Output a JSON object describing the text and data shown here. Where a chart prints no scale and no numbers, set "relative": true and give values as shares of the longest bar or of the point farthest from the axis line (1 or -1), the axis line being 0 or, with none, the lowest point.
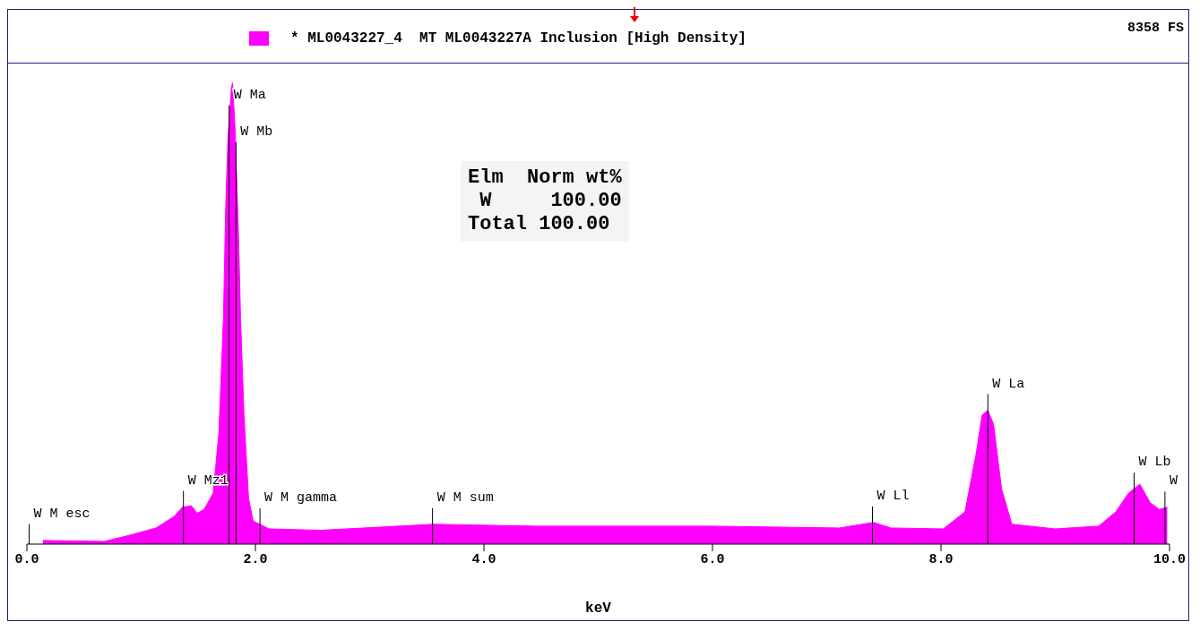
{
  "chart_data": {
    "type": "area",
    "relative": true,
    "legend": "top",
    "marker": "none",
    "grid": false,
    "xlabel": "keV",
    "xlim": [
      0,
      10
    ],
    "xticks": [
      {
        "value": 0,
        "label": "0.0"
      },
      {
        "value": 2,
        "label": "2.0"
      },
      {
        "value": 4,
        "label": "4.0"
      },
      {
        "value": 6,
        "label": "6.0"
      },
      {
        "value": 8,
        "label": "8.0"
      },
      {
        "value": 10,
        "label": "10.0"
      }
    ],
    "annotations": [
      "8358 FS",
      "Elm  Norm wt%",
      " W     100.00",
      "Total 100.00"
    ],
    "ref_lines": [
      {
        "axis": "x",
        "value": 0.02,
        "label": "W M esc"
      },
      {
        "axis": "x",
        "value": 1.37,
        "label": "W Mz1"
      },
      {
        "axis": "x",
        "value": 1.77,
        "label": "W Ma"
      },
      {
        "axis": "x",
        "value": 1.83,
        "label": "W Mb"
      },
      {
        "axis": "x",
        "value": 2.04,
        "label": "W M gamma"
      },
      {
        "axis": "x",
        "value": 3.55,
        "label": "W M sum"
      },
      {
        "axis": "x",
        "value": 7.4,
        "label": "W Ll"
      },
      {
        "axis": "x",
        "value": 8.41,
        "label": "W La"
      },
      {
        "axis": "x",
        "value": 9.69,
        "label": "W Lb"
      },
      {
        "axis": "x",
        "value": 9.96,
        "label": "W"
      }
    ],
    "series": [
      {
        "name": "* ML0043227_4  MT ML0043227A Inclusion [High Density]",
        "color": "#ff00ff",
        "x": [
          0.14,
          0.68,
          0.91,
          1.13,
          1.29,
          1.36,
          1.44,
          1.49,
          1.55,
          1.63,
          1.68,
          1.72,
          1.74,
          1.76,
          1.79,
          1.8,
          1.82,
          1.85,
          1.87,
          1.9,
          1.94,
          1.98,
          2.12,
          2.57,
          3.56,
          4.46,
          5.98,
          7.11,
          7.41,
          7.56,
          8.02,
          8.21,
          8.31,
          8.36,
          8.41,
          8.46,
          8.53,
          8.62,
          9.0,
          9.38,
          9.53,
          9.64,
          9.74,
          9.83,
          9.91,
          9.98
        ],
        "values": [
          0.008,
          0.006,
          0.02,
          0.035,
          0.06,
          0.08,
          0.083,
          0.067,
          0.075,
          0.11,
          0.24,
          0.49,
          0.73,
          0.88,
          0.99,
          1.0,
          0.91,
          0.69,
          0.49,
          0.28,
          0.1,
          0.05,
          0.033,
          0.03,
          0.043,
          0.039,
          0.039,
          0.035,
          0.047,
          0.035,
          0.033,
          0.07,
          0.2,
          0.28,
          0.29,
          0.26,
          0.12,
          0.043,
          0.033,
          0.039,
          0.07,
          0.11,
          0.13,
          0.09,
          0.075,
          0.08
        ]
      }
    ]
  }
}
